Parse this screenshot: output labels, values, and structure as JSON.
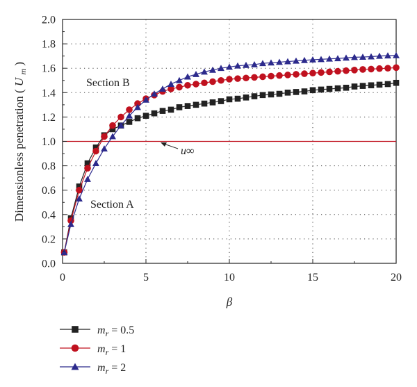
{
  "chart_data": {
    "type": "line",
    "title": "",
    "xlabel": "β",
    "ylabel": "Dimensionless penetration",
    "ylabel_symbol": "U",
    "ylabel_symbol_sub": "m",
    "xlim": [
      0,
      20
    ],
    "ylim": [
      0,
      2.0
    ],
    "x_ticks": [
      "0",
      "5",
      "10",
      "15",
      "20"
    ],
    "y_ticks": [
      "0.0",
      "0.2",
      "0.4",
      "0.6",
      "0.8",
      "1.0",
      "1.2",
      "1.4",
      "1.6",
      "1.8",
      "2.0"
    ],
    "grid": true,
    "legend_position": "bottom-left (below plot)",
    "reference_line": {
      "y": 1.0,
      "color": "#c0111f"
    },
    "annotations": [
      {
        "text": "Section B"
      },
      {
        "text": "Section A"
      },
      {
        "text": "u∞"
      }
    ],
    "x": [
      0.1,
      0.5,
      1.0,
      1.5,
      2.0,
      2.5,
      3.0,
      3.5,
      4.0,
      4.5,
      5.0,
      5.5,
      6.0,
      6.5,
      7.0,
      7.5,
      8.0,
      8.5,
      9.0,
      9.5,
      10.0,
      10.5,
      11.0,
      11.5,
      12.0,
      12.5,
      13.0,
      13.5,
      14.0,
      14.5,
      15.0,
      15.5,
      16.0,
      16.5,
      17.0,
      17.5,
      18.0,
      18.5,
      19.0,
      19.5,
      20.0
    ],
    "series": [
      {
        "label_var": "m",
        "label_sub": "r",
        "label_val": " = 0.5",
        "color": "#222222",
        "marker": "square",
        "values": [
          0.09,
          0.37,
          0.63,
          0.82,
          0.95,
          1.05,
          1.1,
          1.13,
          1.16,
          1.19,
          1.21,
          1.23,
          1.25,
          1.26,
          1.28,
          1.29,
          1.3,
          1.31,
          1.32,
          1.33,
          1.345,
          1.35,
          1.36,
          1.37,
          1.38,
          1.385,
          1.39,
          1.4,
          1.405,
          1.41,
          1.42,
          1.425,
          1.43,
          1.435,
          1.44,
          1.45,
          1.455,
          1.46,
          1.465,
          1.47,
          1.48
        ]
      },
      {
        "label_var": "m",
        "label_sub": "r",
        "label_val": " = 1",
        "color": "#c0111f",
        "marker": "circle",
        "values": [
          0.09,
          0.35,
          0.6,
          0.78,
          0.92,
          1.04,
          1.13,
          1.2,
          1.26,
          1.31,
          1.35,
          1.38,
          1.41,
          1.43,
          1.445,
          1.46,
          1.47,
          1.48,
          1.49,
          1.5,
          1.51,
          1.515,
          1.52,
          1.525,
          1.53,
          1.535,
          1.54,
          1.545,
          1.55,
          1.555,
          1.56,
          1.565,
          1.57,
          1.575,
          1.58,
          1.585,
          1.59,
          1.593,
          1.597,
          1.6,
          1.605
        ]
      },
      {
        "label_var": "m",
        "label_sub": "r",
        "label_val": " = 2",
        "color": "#2c2a8c",
        "marker": "triangle",
        "values": [
          0.09,
          0.32,
          0.53,
          0.69,
          0.82,
          0.94,
          1.04,
          1.13,
          1.21,
          1.28,
          1.34,
          1.39,
          1.43,
          1.47,
          1.5,
          1.53,
          1.55,
          1.57,
          1.585,
          1.6,
          1.61,
          1.62,
          1.625,
          1.63,
          1.64,
          1.645,
          1.65,
          1.655,
          1.66,
          1.665,
          1.67,
          1.673,
          1.677,
          1.68,
          1.685,
          1.69,
          1.692,
          1.695,
          1.7,
          1.703,
          1.705
        ]
      }
    ]
  }
}
